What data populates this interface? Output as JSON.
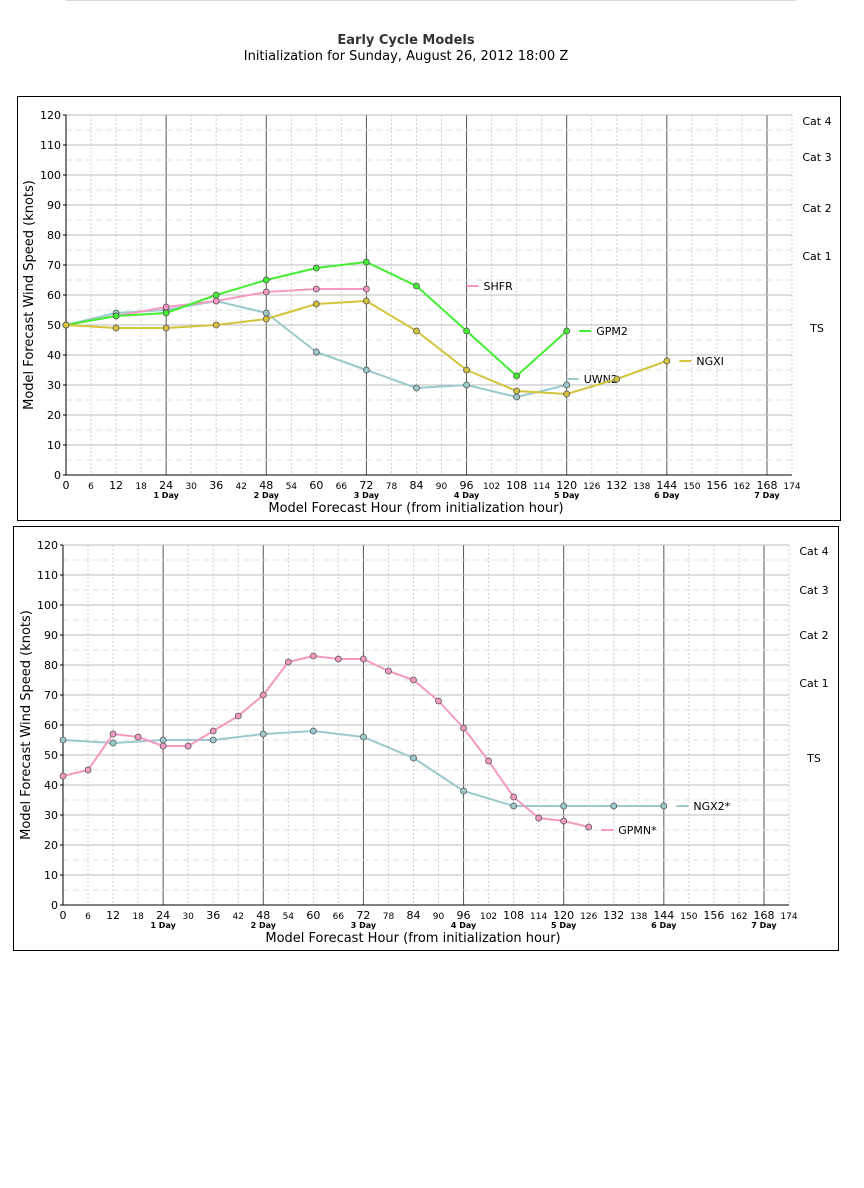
{
  "header": {
    "title": "Early Cycle Models",
    "subtitle": "Initialization for Sunday, August 26, 2012 18:00 Z"
  },
  "chart_data": [
    {
      "type": "line",
      "xlabel": "Model Forecast Hour (from initialization hour)",
      "ylabel": "Model Forecast Wind Speed (knots)",
      "xlim": [
        0,
        174
      ],
      "ylim": [
        0,
        120
      ],
      "xticks": [
        0,
        6,
        12,
        18,
        24,
        30,
        36,
        42,
        48,
        54,
        60,
        66,
        72,
        78,
        84,
        90,
        96,
        102,
        108,
        114,
        120,
        126,
        132,
        138,
        144,
        150,
        156,
        162,
        168,
        174
      ],
      "yticks": [
        0,
        10,
        20,
        30,
        40,
        50,
        60,
        70,
        80,
        90,
        100,
        110,
        120
      ],
      "day_labels": [
        {
          "x": 24,
          "label": "1 Day"
        },
        {
          "x": 48,
          "label": "2 Day"
        },
        {
          "x": 72,
          "label": "3 Day"
        },
        {
          "x": 96,
          "label": "4 Day"
        },
        {
          "x": 120,
          "label": "5 Day"
        },
        {
          "x": 144,
          "label": "6 Day"
        },
        {
          "x": 168,
          "label": "7 Day"
        }
      ],
      "categories_right": [
        {
          "y": 118,
          "label": "Cat 4"
        },
        {
          "y": 106,
          "label": "Cat 3"
        },
        {
          "y": 89,
          "label": "Cat 2"
        },
        {
          "y": 73,
          "label": "Cat 1"
        },
        {
          "y": 49,
          "label": "TS"
        }
      ],
      "grid": true,
      "series": [
        {
          "name": "UWN2",
          "color": "#9cc9cc",
          "x": [
            0,
            12,
            24,
            36,
            48,
            60,
            72,
            84,
            96,
            108,
            120
          ],
          "y": [
            50,
            54,
            55,
            58,
            54,
            41,
            35,
            29,
            30,
            26,
            30
          ],
          "label_at": [
            120,
            32
          ]
        },
        {
          "name": "SHFR",
          "color": "#f49ac1",
          "x": [
            0,
            12,
            24,
            36,
            48,
            60,
            72
          ],
          "y": [
            50,
            53,
            56,
            58,
            61,
            62,
            62
          ],
          "label_at": [
            96,
            63
          ]
        },
        {
          "name": "GPM2",
          "color": "#44ee33",
          "x": [
            0,
            12,
            24,
            36,
            48,
            60,
            72,
            84,
            96,
            108,
            120
          ],
          "y": [
            50,
            53,
            54,
            60,
            65,
            69,
            71,
            63,
            48,
            33,
            48
          ],
          "label_at": [
            123,
            48
          ]
        },
        {
          "name": "NGXI",
          "color": "#d4c43b",
          "x": [
            0,
            12,
            24,
            36,
            48,
            60,
            72,
            84,
            96,
            108,
            120,
            132,
            144
          ],
          "y": [
            50,
            49,
            49,
            50,
            52,
            57,
            58,
            48,
            35,
            28,
            27,
            32,
            38
          ],
          "label_at": [
            147,
            38
          ]
        }
      ]
    },
    {
      "type": "line",
      "xlabel": "Model Forecast Hour (from initialization hour)",
      "ylabel": "Model Forecast Wind Speed (knots)",
      "xlim": [
        0,
        174
      ],
      "ylim": [
        0,
        120
      ],
      "xticks": [
        0,
        6,
        12,
        18,
        24,
        30,
        36,
        42,
        48,
        54,
        60,
        66,
        72,
        78,
        84,
        90,
        96,
        102,
        108,
        114,
        120,
        126,
        132,
        138,
        144,
        150,
        156,
        162,
        168,
        174
      ],
      "yticks": [
        0,
        10,
        20,
        30,
        40,
        50,
        60,
        70,
        80,
        90,
        100,
        110,
        120
      ],
      "day_labels": [
        {
          "x": 24,
          "label": "1 Day"
        },
        {
          "x": 48,
          "label": "2 Day"
        },
        {
          "x": 72,
          "label": "3 Day"
        },
        {
          "x": 96,
          "label": "4 Day"
        },
        {
          "x": 120,
          "label": "5 Day"
        },
        {
          "x": 144,
          "label": "6 Day"
        },
        {
          "x": 168,
          "label": "7 Day"
        }
      ],
      "categories_right": [
        {
          "y": 118,
          "label": "Cat 4"
        },
        {
          "y": 105,
          "label": "Cat 3"
        },
        {
          "y": 90,
          "label": "Cat 2"
        },
        {
          "y": 74,
          "label": "Cat 1"
        },
        {
          "y": 49,
          "label": "TS"
        }
      ],
      "grid": true,
      "series": [
        {
          "name": "NGX2*",
          "color": "#9cc9cc",
          "x": [
            0,
            12,
            24,
            36,
            48,
            60,
            72,
            84,
            96,
            108,
            120,
            132,
            144
          ],
          "y": [
            55,
            54,
            55,
            55,
            57,
            58,
            56,
            49,
            38,
            33,
            33,
            33,
            33
          ],
          "label_at": [
            147,
            33
          ]
        },
        {
          "name": "GPMN*",
          "color": "#f49ac1",
          "x": [
            0,
            6,
            12,
            18,
            24,
            30,
            36,
            42,
            48,
            54,
            60,
            66,
            72,
            78,
            84,
            90,
            96,
            102,
            108,
            114,
            120,
            126
          ],
          "y": [
            43,
            45,
            57,
            56,
            53,
            53,
            58,
            63,
            70,
            81,
            83,
            82,
            82,
            78,
            75,
            68,
            59,
            48,
            36,
            29,
            28,
            26
          ],
          "label_at": [
            129,
            25
          ]
        }
      ]
    }
  ]
}
